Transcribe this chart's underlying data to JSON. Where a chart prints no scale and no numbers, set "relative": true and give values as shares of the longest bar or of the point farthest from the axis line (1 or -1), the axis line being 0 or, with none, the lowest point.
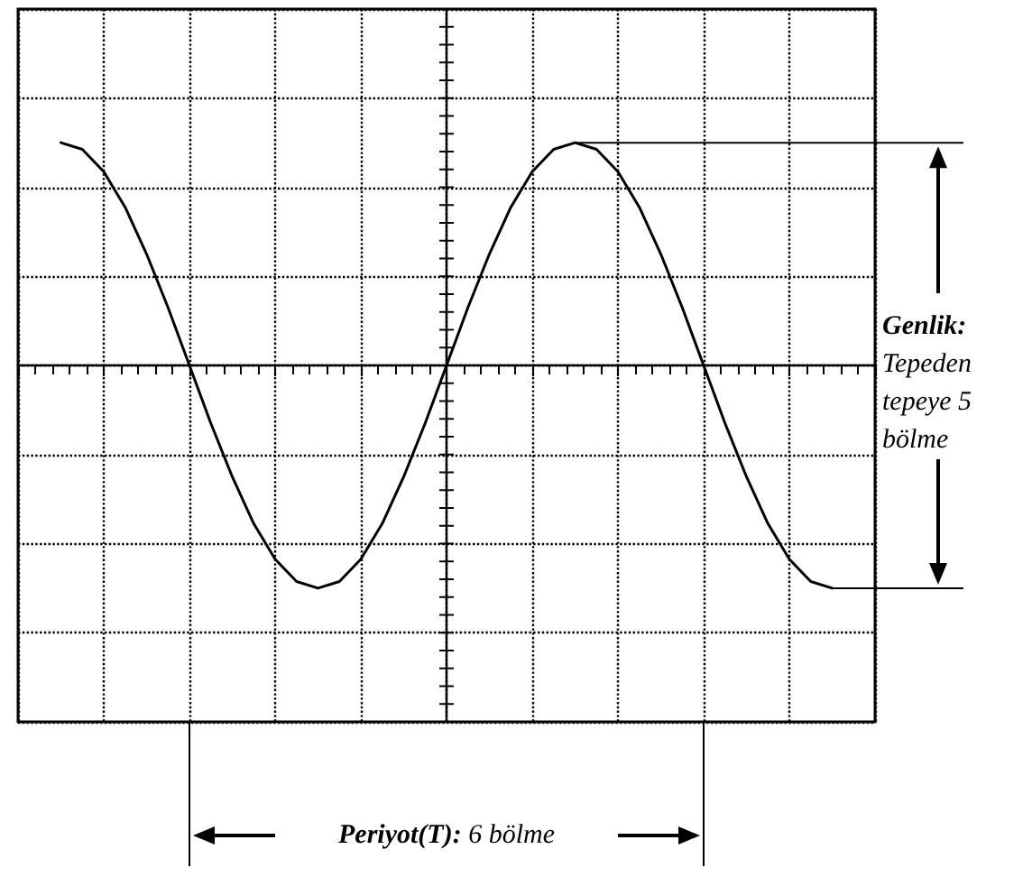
{
  "chart_data": {
    "type": "line",
    "relative": true,
    "categories": [
      null,
      null,
      null,
      null,
      null,
      null,
      null,
      null,
      null,
      null,
      null,
      null,
      null,
      null,
      null,
      null,
      null,
      null,
      null,
      null,
      null,
      null,
      null,
      null,
      null,
      null,
      null,
      null,
      null,
      null,
      null,
      null,
      null,
      null,
      null,
      null,
      null
    ],
    "series": [
      {
        "color": "#000000",
        "values": [
          1,
          0.97,
          0.87,
          0.71,
          0.5,
          0.26,
          0,
          -0.26,
          -0.5,
          -0.71,
          -0.87,
          -0.97,
          -1,
          -0.97,
          -0.87,
          -0.71,
          -0.5,
          -0.26,
          0,
          0.26,
          0.5,
          0.71,
          0.87,
          0.97,
          1,
          0.97,
          0.87,
          0.71,
          0.5,
          0.26,
          0,
          -0.26,
          -0.5,
          -0.71,
          -0.87,
          -0.97,
          -1
        ]
      }
    ],
    "grid": true,
    "marker": "none",
    "line_style": "solid",
    "annotations": [
      "Genlik: Tepeden tepeye 5 bölme",
      "Periyot(T): 6 bölme"
    ]
  }
}
